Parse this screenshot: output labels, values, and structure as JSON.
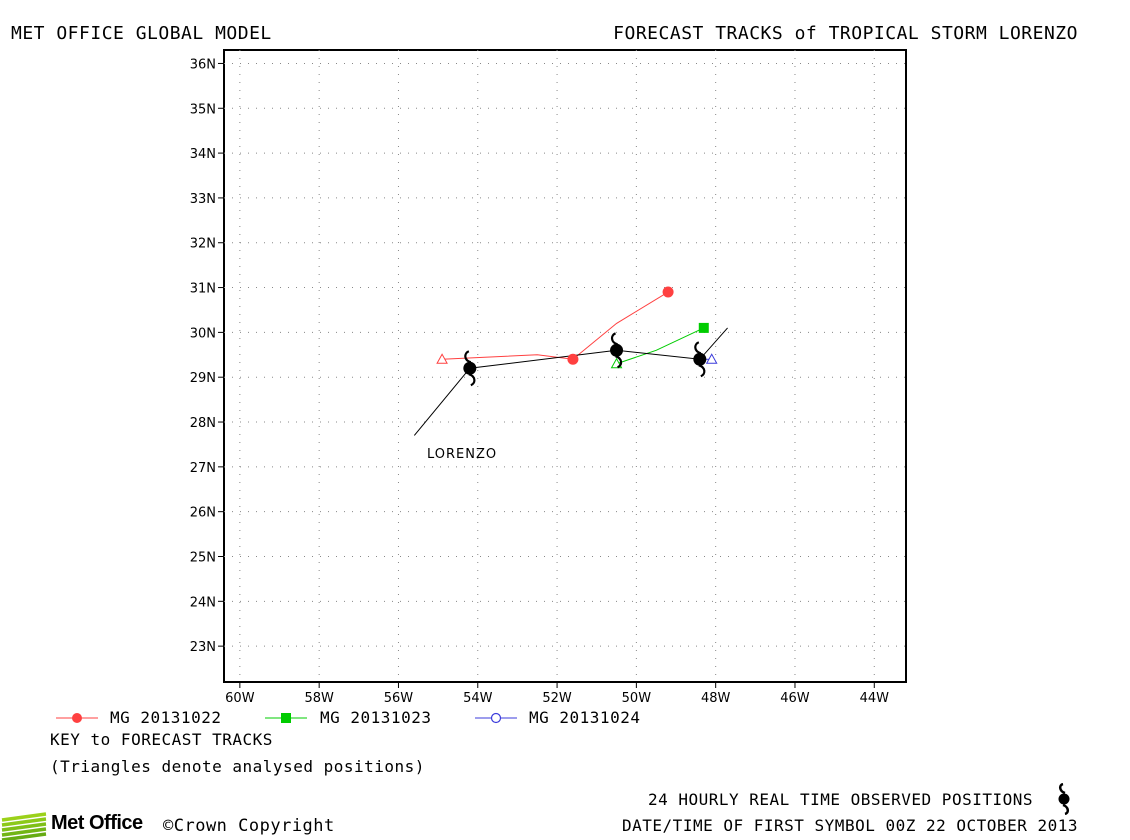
{
  "header": {
    "left_title": "MET OFFICE GLOBAL MODEL",
    "right_title": "FORECAST TRACKS of TROPICAL STORM LORENZO"
  },
  "map": {
    "storm_label": "LORENZO",
    "lon_ticks": [
      "60W",
      "58W",
      "56W",
      "54W",
      "52W",
      "50W",
      "48W",
      "46W",
      "44W"
    ],
    "lat_ticks": [
      "36N",
      "35N",
      "34N",
      "33N",
      "32N",
      "31N",
      "30N",
      "29N",
      "28N",
      "27N",
      "26N",
      "25N",
      "24N",
      "23N"
    ],
    "grid": "dotted",
    "lon_range_deg_w": [
      60.4,
      43.2
    ],
    "lat_range_deg_n": [
      22.2,
      36.3
    ]
  },
  "legend": {
    "entries": [
      {
        "label": "MG 20131022",
        "color": "#ff4040",
        "marker": "filled-circle"
      },
      {
        "label": "MG 20131023",
        "color": "#00cc00",
        "marker": "filled-square"
      },
      {
        "label": "MG 20131024",
        "color": "#3b3bdb",
        "marker": "open-circle"
      }
    ],
    "key_title": "KEY to FORECAST TRACKS",
    "triangles_note": "(Triangles denote analysed positions)"
  },
  "footer": {
    "brand": "Met Office",
    "copyright": "©Crown Copyright",
    "observed_note": "24 HOURLY REAL TIME OBSERVED POSITIONS",
    "datetime_note": "DATE/TIME OF FIRST SYMBOL 00Z 22 OCTOBER 2013"
  },
  "tracks": {
    "observed": {
      "color": "#000000",
      "line": [
        [
          55.6,
          27.7
        ],
        [
          54.2,
          29.2
        ],
        [
          50.5,
          29.6
        ],
        [
          48.4,
          29.4
        ],
        [
          47.7,
          30.1
        ]
      ],
      "symbols": [
        [
          54.2,
          29.2
        ],
        [
          50.5,
          29.6
        ],
        [
          48.4,
          29.4
        ]
      ]
    },
    "mg_20131022": {
      "color": "#ff4040",
      "line": [
        [
          54.9,
          29.4
        ],
        [
          52.5,
          29.5
        ],
        [
          51.6,
          29.4
        ],
        [
          50.5,
          30.2
        ],
        [
          49.2,
          30.9
        ]
      ],
      "analysed": [
        54.9,
        29.4
      ],
      "points": [
        [
          51.6,
          29.4
        ],
        [
          49.2,
          30.9
        ]
      ]
    },
    "mg_20131023": {
      "color": "#00cc00",
      "line": [
        [
          50.5,
          29.3
        ],
        [
          49.5,
          29.6
        ],
        [
          48.3,
          30.1
        ]
      ],
      "analysed": [
        50.5,
        29.3
      ],
      "points": [
        [
          48.3,
          30.1
        ]
      ]
    },
    "mg_20131024": {
      "color": "#3b3bdb",
      "line": [
        [
          48.4,
          29.4
        ],
        [
          48.1,
          29.4
        ]
      ],
      "analysed": [
        48.1,
        29.4
      ],
      "points": []
    }
  }
}
